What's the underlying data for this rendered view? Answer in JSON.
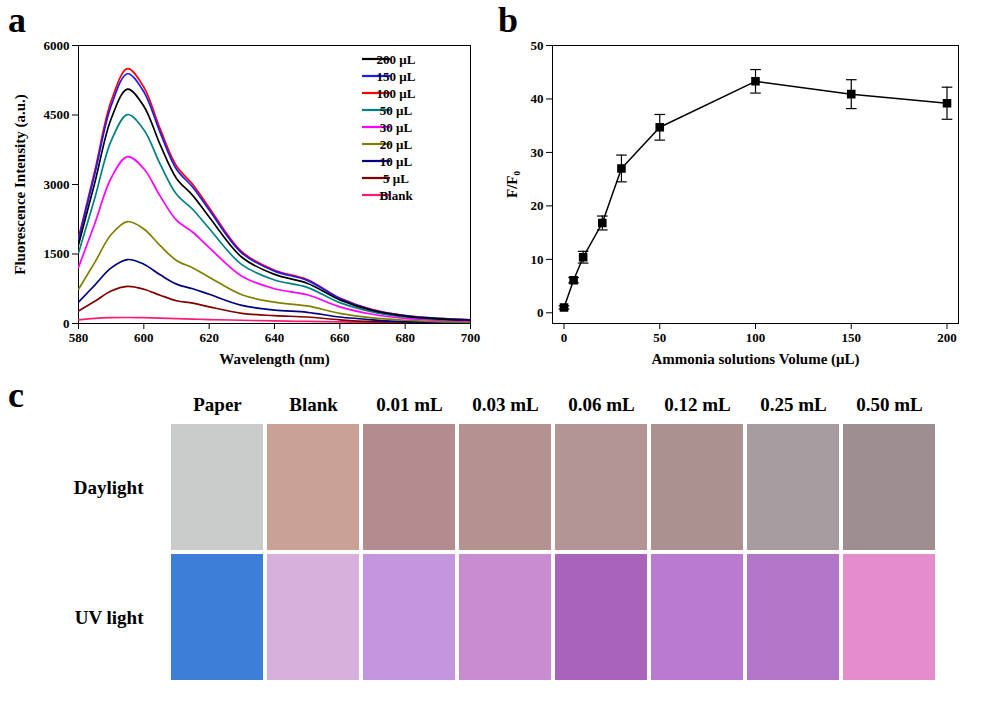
{
  "chart_data": [
    {
      "panel_label": "a",
      "type": "line",
      "x_label": "Wavelength (nm)",
      "y_label": "Fluorescence Intensity (a.u.)",
      "x": [
        580,
        585,
        590,
        595,
        600,
        605,
        610,
        615,
        620,
        630,
        640,
        650,
        660,
        670,
        680,
        690,
        700
      ],
      "series": [
        {
          "name": "200 μL",
          "color": "#000000",
          "values": [
            1700,
            3040,
            4420,
            5060,
            4690,
            3860,
            3130,
            2760,
            2300,
            1430,
            1060,
            870,
            510,
            280,
            160,
            100,
            70
          ]
        },
        {
          "name": "150 μL",
          "color": "#1a1aff",
          "values": [
            1810,
            3230,
            4700,
            5390,
            5000,
            4120,
            3330,
            2940,
            2450,
            1520,
            1130,
            930,
            540,
            290,
            170,
            110,
            80
          ]
        },
        {
          "name": "100 μL",
          "color": "#ff0000",
          "values": [
            1850,
            3300,
            4800,
            5500,
            5100,
            4200,
            3400,
            3000,
            2500,
            1550,
            1150,
            950,
            550,
            300,
            170,
            110,
            80
          ]
        },
        {
          "name": "50 μL",
          "color": "#008080",
          "values": [
            1520,
            2710,
            3940,
            4510,
            4180,
            3440,
            2790,
            2460,
            2050,
            1270,
            940,
            780,
            450,
            250,
            140,
            90,
            70
          ]
        },
        {
          "name": "30 μL",
          "color": "#ff00ff",
          "values": [
            1210,
            2160,
            3140,
            3600,
            3340,
            2750,
            2230,
            1970,
            1640,
            1020,
            750,
            620,
            360,
            200,
            110,
            70,
            50
          ]
        },
        {
          "name": "20 μL",
          "color": "#808000",
          "values": [
            740,
            1320,
            1920,
            2200,
            2040,
            1680,
            1360,
            1200,
            1000,
            620,
            460,
            380,
            220,
            120,
            70,
            40,
            30
          ]
        },
        {
          "name": "10 μL",
          "color": "#000080",
          "values": [
            460,
            830,
            1200,
            1380,
            1280,
            1050,
            850,
            750,
            630,
            390,
            290,
            240,
            140,
            80,
            40,
            30,
            20
          ]
        },
        {
          "name": "5 μL",
          "color": "#800000",
          "values": [
            270,
            480,
            700,
            800,
            740,
            610,
            490,
            440,
            360,
            220,
            170,
            140,
            80,
            40,
            30,
            20,
            10
          ]
        },
        {
          "name": "Blank",
          "color": "#ff1a75",
          "values": [
            80,
            110,
            125,
            130,
            125,
            115,
            105,
            95,
            85,
            70,
            55,
            45,
            35,
            25,
            20,
            15,
            10
          ]
        }
      ],
      "xlim": [
        580,
        700
      ],
      "xticks": [
        580,
        600,
        620,
        640,
        660,
        680,
        700
      ],
      "ylim": [
        0,
        6000
      ],
      "yticks": [
        0,
        1500,
        3000,
        4500,
        6000
      ],
      "legend": "top-right"
    },
    {
      "panel_label": "b",
      "type": "line",
      "marker": "square",
      "color": "#000000",
      "x_label": "Ammonia solutions Volume (μL)",
      "y_label": "F/F₀",
      "x": [
        0,
        5,
        10,
        20,
        30,
        50,
        100,
        150,
        200
      ],
      "values": [
        1.0,
        6.1,
        10.4,
        16.8,
        27.0,
        34.7,
        43.3,
        40.9,
        39.2
      ],
      "errors": [
        0.3,
        0.5,
        1.1,
        1.3,
        2.5,
        2.4,
        2.2,
        2.7,
        3.0
      ],
      "xlim": [
        -6,
        206
      ],
      "xticks": [
        0,
        50,
        100,
        150,
        200
      ],
      "ylim": [
        -2,
        50
      ],
      "yticks": [
        0,
        10,
        20,
        30,
        40,
        50
      ]
    },
    {
      "panel_label": "c",
      "type": "swatch_grid",
      "categories": [
        "Paper",
        "Blank",
        "0.01 mL",
        "0.03 mL",
        "0.06 mL",
        "0.12 mL",
        "0.25 mL",
        "0.50 mL"
      ],
      "rows": [
        "Daylight",
        "UV light"
      ],
      "colors": [
        [
          "#c9cccb",
          "#c9a295",
          "#b48c90",
          "#b59292",
          "#b39595",
          "#ab9190",
          "#a69ca0",
          "#9e8e91"
        ],
        [
          "#3d7ed8",
          "#d8b0dc",
          "#c596e0",
          "#c98cd0",
          "#a963bb",
          "#b97ad0",
          "#b476c8",
          "#e58ccc"
        ]
      ]
    }
  ]
}
